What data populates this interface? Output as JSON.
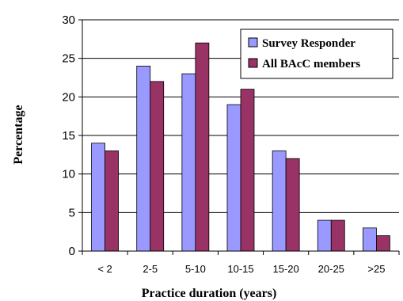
{
  "chart_data": {
    "type": "bar",
    "categories": [
      "< 2",
      "2-5",
      "5-10",
      "10-15",
      "15-20",
      "20-25",
      ">25"
    ],
    "series": [
      {
        "name": "Survey Responder",
        "values": [
          14,
          24,
          23,
          19,
          13,
          4,
          3
        ],
        "color": "#9999ff"
      },
      {
        "name": "All BAcC members",
        "values": [
          13,
          22,
          27,
          21,
          12,
          4,
          2
        ],
        "color": "#993366"
      }
    ],
    "xlabel": "Practice duration (years)",
    "ylabel": "Percentage",
    "ylim": [
      0,
      30
    ],
    "yticks": [
      0,
      5,
      10,
      15,
      20,
      25,
      30
    ],
    "grid": true,
    "legend_position": "top-right"
  }
}
